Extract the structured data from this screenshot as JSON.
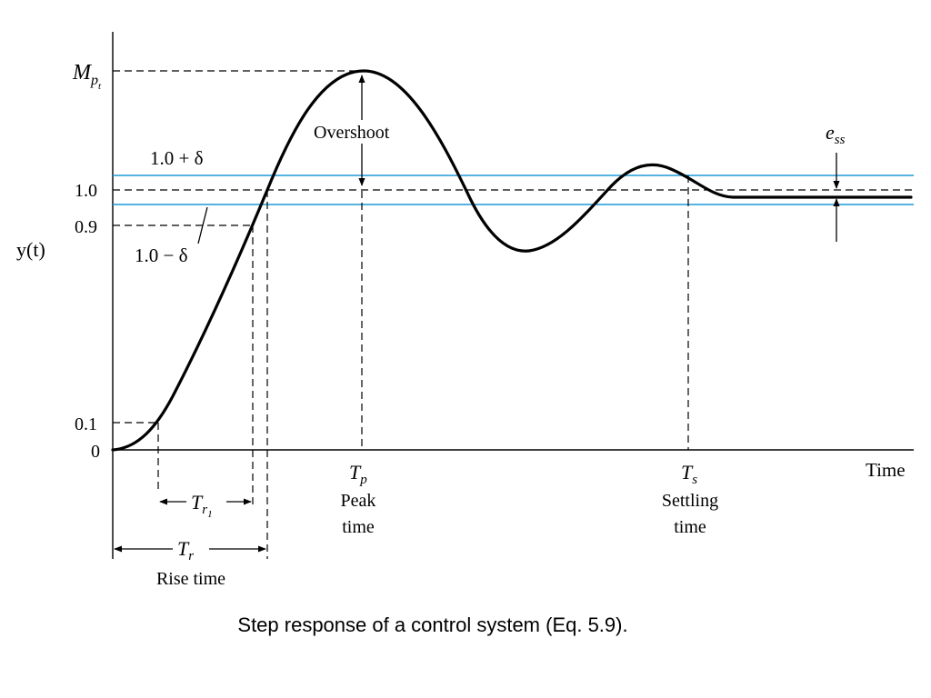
{
  "labels": {
    "mpt_main": "M",
    "mpt_sub": "p",
    "mpt_subsub": "t",
    "upper_band": "1.0 + δ",
    "lower_band": "1.0 − δ",
    "tick_1_0": "1.0",
    "tick_0_9": "0.9",
    "tick_0_1": "0.1",
    "tick_0": "0",
    "y_axis": "y(t)",
    "x_axis": "Time",
    "overshoot": "Overshoot",
    "ess_main": "e",
    "ess_sub": "ss",
    "tp_main": "T",
    "tp_sub": "p",
    "peak_line1": "Peak",
    "peak_line2": "time",
    "ts_main": "T",
    "ts_sub": "s",
    "settling_line1": "Settling",
    "settling_line2": "time",
    "tr1_main": "T",
    "tr1_sub": "r",
    "tr1_subsub": "1",
    "tr_main": "T",
    "tr_sub": "r",
    "rise_time": "Rise time"
  },
  "caption": "Step response of a control system (Eq. 5.9).",
  "colors": {
    "band": "#1c9ad6",
    "curve": "#000000"
  }
}
